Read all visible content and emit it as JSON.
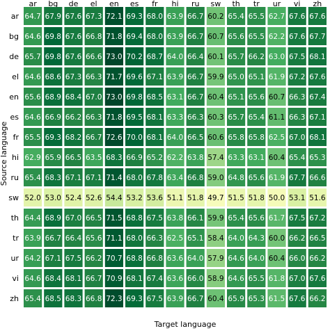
{
  "chart_data": {
    "type": "heatmap",
    "xlabel": "Target language",
    "ylabel": "Source language",
    "x_categories": [
      "ar",
      "bg",
      "de",
      "el",
      "en",
      "es",
      "fr",
      "hi",
      "ru",
      "sw",
      "th",
      "tr",
      "ur",
      "vi",
      "zh"
    ],
    "y_categories": [
      "ar",
      "bg",
      "de",
      "el",
      "en",
      "es",
      "fr",
      "hi",
      "ru",
      "sw",
      "th",
      "tr",
      "ur",
      "vi",
      "zh"
    ],
    "values": [
      [
        64.7,
        67.9,
        67.6,
        67.3,
        72.1,
        69.3,
        68.0,
        63.9,
        66.7,
        60.2,
        65.4,
        65.5,
        62.7,
        67.6,
        67.6
      ],
      [
        64.6,
        69.8,
        67.6,
        66.8,
        71.8,
        69.4,
        68.0,
        63.9,
        66.7,
        60.7,
        65.6,
        65.5,
        62.2,
        67.6,
        67.7
      ],
      [
        65.7,
        69.8,
        67.6,
        66.6,
        73.0,
        70.2,
        68.7,
        64.0,
        66.4,
        60.1,
        65.7,
        66.2,
        63.0,
        67.5,
        68.1
      ],
      [
        64.6,
        68.6,
        67.3,
        66.3,
        71.7,
        69.6,
        67.1,
        63.9,
        66.7,
        59.9,
        65.0,
        65.1,
        61.9,
        67.2,
        67.6
      ],
      [
        65.6,
        68.9,
        68.4,
        67.0,
        73.0,
        69.8,
        68.5,
        63.1,
        66.7,
        60.4,
        65.1,
        65.6,
        60.7,
        66.3,
        67.4
      ],
      [
        64.6,
        66.9,
        66.2,
        66.3,
        71.8,
        69.5,
        68.1,
        63.3,
        66.3,
        60.3,
        65.7,
        65.4,
        61.1,
        66.3,
        67.1
      ],
      [
        65.5,
        69.3,
        68.2,
        66.7,
        72.6,
        70.0,
        68.1,
        64.0,
        66.5,
        60.6,
        65.8,
        65.8,
        62.5,
        67.0,
        68.1
      ],
      [
        62.9,
        65.9,
        66.5,
        63.5,
        68.3,
        66.9,
        65.2,
        62.2,
        63.8,
        57.4,
        63.3,
        63.1,
        60.4,
        65.4,
        65.3
      ],
      [
        65.4,
        68.3,
        67.1,
        67.1,
        71.4,
        68.0,
        67.8,
        63.4,
        66.8,
        59.0,
        64.8,
        65.6,
        61.9,
        67.7,
        66.6
      ],
      [
        52.0,
        53.0,
        52.4,
        52.6,
        54.4,
        53.2,
        53.6,
        51.1,
        51.8,
        49.7,
        51.5,
        51.8,
        50.0,
        53.1,
        51.6
      ],
      [
        64.4,
        68.9,
        67.0,
        66.5,
        71.5,
        68.8,
        67.5,
        63.8,
        66.1,
        59.9,
        65.4,
        65.6,
        61.7,
        67.5,
        67.2
      ],
      [
        63.9,
        66.7,
        66.4,
        65.6,
        71.1,
        68.0,
        66.3,
        62.5,
        65.1,
        58.4,
        64.0,
        64.3,
        60.0,
        66.2,
        66.5
      ],
      [
        64.2,
        67.1,
        67.5,
        66.2,
        70.7,
        68.8,
        66.8,
        63.6,
        64.0,
        57.9,
        64.6,
        64.0,
        60.4,
        66.0,
        66.2
      ],
      [
        64.6,
        68.4,
        68.1,
        66.7,
        70.9,
        68.1,
        67.4,
        63.6,
        66.0,
        58.9,
        64.6,
        65.5,
        61.8,
        67.0,
        67.6
      ],
      [
        65.4,
        68.5,
        68.3,
        66.8,
        72.3,
        69.3,
        67.5,
        63.9,
        66.7,
        60.4,
        65.9,
        65.3,
        61.5,
        67.6,
        66.2
      ]
    ],
    "value_range": [
      49.7,
      73.0
    ],
    "colormap": "YlGn",
    "annotations": "cell values shown inside each cell"
  }
}
